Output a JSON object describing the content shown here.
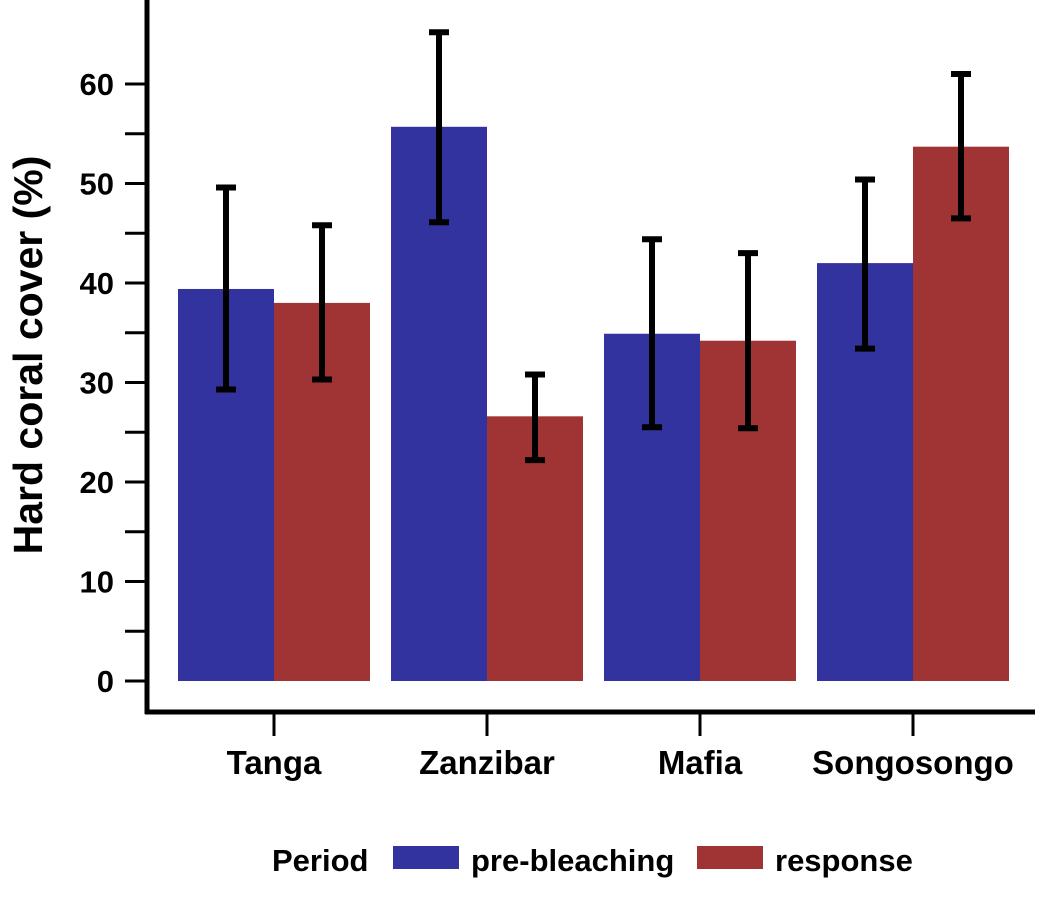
{
  "chart_data": {
    "type": "bar",
    "categories": [
      "Tanga",
      "Zanzibar",
      "Mafia",
      "Songosongo"
    ],
    "series": [
      {
        "name": "pre-bleaching",
        "color": "#3333a0",
        "values": [
          39.4,
          55.7,
          34.9,
          42.0
        ],
        "error_low": [
          29.3,
          46.1,
          25.5,
          33.4
        ],
        "error_high": [
          49.6,
          65.2,
          44.4,
          50.4
        ]
      },
      {
        "name": "response",
        "color": "#a03333",
        "values": [
          38.0,
          26.6,
          34.2,
          53.7
        ],
        "error_low": [
          30.3,
          22.2,
          25.4,
          46.5
        ],
        "error_high": [
          45.8,
          30.8,
          43.0,
          61.0
        ]
      }
    ],
    "ylabel": "Hard coral cover (%)",
    "xlabel": "",
    "ylim": [
      0,
      65
    ],
    "yticks": [
      0,
      10,
      20,
      30,
      40,
      50,
      60
    ],
    "legend": {
      "title": "Period",
      "position": "bottom"
    }
  }
}
